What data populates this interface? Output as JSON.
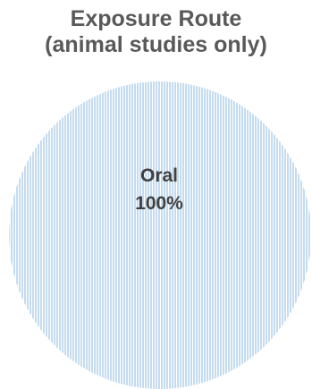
{
  "chart_data": {
    "type": "pie",
    "title_lines": [
      "Exposure Route",
      "(animal studies only)"
    ],
    "slices": [
      {
        "label": "Oral",
        "value": 100,
        "percent_label": "100%"
      }
    ],
    "legend": "none",
    "fill_pattern": "vertical-lines",
    "colors": {
      "hatch": "#9dc3e6",
      "label_text": "#404040",
      "title_text": "#595959"
    }
  }
}
